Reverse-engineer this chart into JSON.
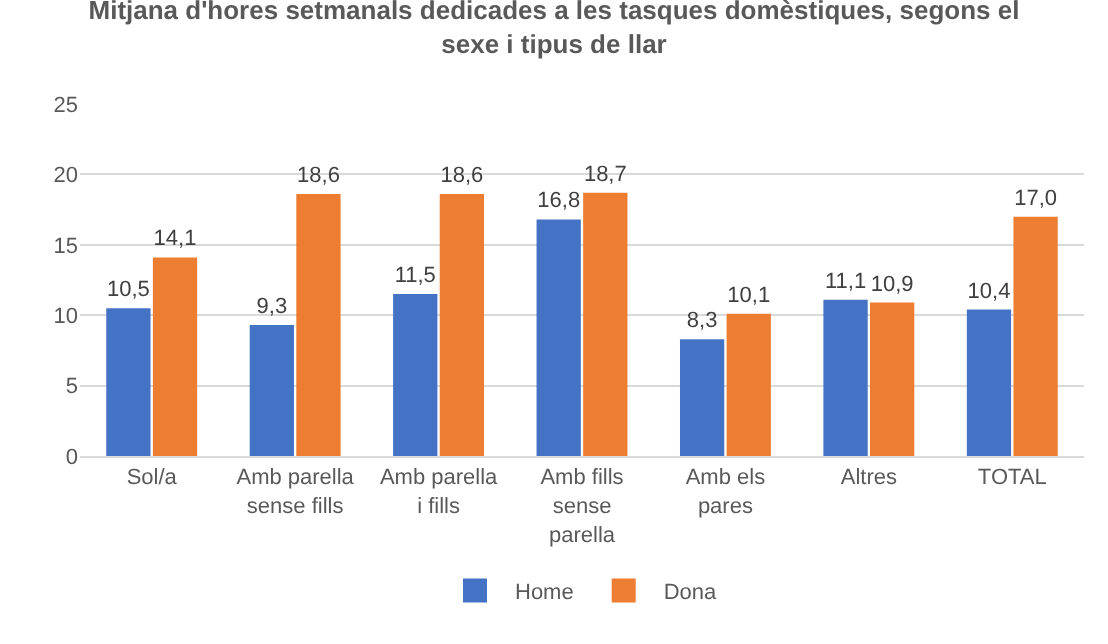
{
  "chart_data": {
    "type": "bar",
    "title": "Mitjana d'hores setmanals dedicades a les tasques domèstiques, segons el sexe i tipus de llar",
    "categories": [
      "Sol/a",
      "Amb parella sense fills",
      "Amb parella i fills",
      "Amb fills sense parella",
      "Amb els pares",
      "Altres",
      "TOTAL"
    ],
    "series": [
      {
        "name": "Home",
        "color": "#4472c4",
        "values": [
          10.5,
          9.3,
          11.5,
          16.8,
          8.3,
          11.1,
          10.4
        ],
        "value_labels": [
          "10,5",
          "9,3",
          "11,5",
          "16,8",
          "8,3",
          "11,1",
          "10,4"
        ]
      },
      {
        "name": "Dona",
        "color": "#ed7d31",
        "values": [
          14.1,
          18.6,
          18.6,
          18.7,
          10.1,
          10.9,
          17.0
        ],
        "value_labels": [
          "14,1",
          "18,6",
          "18,6",
          "18,7",
          "10,1",
          "10,9",
          "17,0"
        ]
      }
    ],
    "ylim": [
      0,
      25
    ],
    "yticks": [
      0,
      5,
      10,
      15,
      20,
      25
    ],
    "grid": "y",
    "legend": "bottom"
  }
}
